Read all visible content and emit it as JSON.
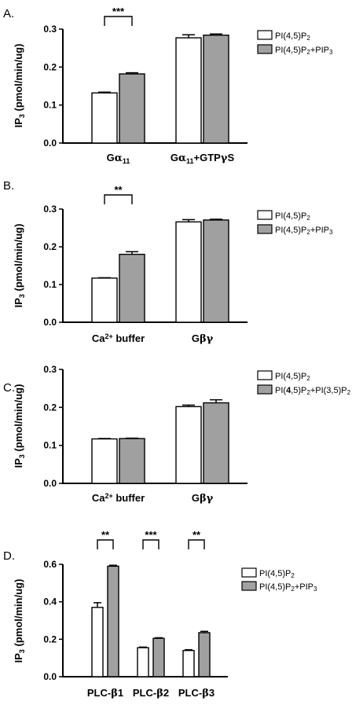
{
  "colors": {
    "series1_fill": "#ffffff",
    "series2_fill": "#a0a0a0",
    "stroke": "#000000"
  },
  "chart_data": [
    {
      "type": "bar",
      "panel": "A.",
      "ylabel": "IP3 (pmol/min/ug)",
      "ylabel_parts": [
        "IP",
        "3",
        " (pmol/min/ug)"
      ],
      "ylim": [
        0,
        0.3
      ],
      "yticks": [
        0.0,
        0.1,
        0.2,
        0.3
      ],
      "ytick_labels": [
        "0.0",
        "0.1",
        "0.2",
        "0.3"
      ],
      "categories": [
        "Gα11",
        "Gα11+GTPγS"
      ],
      "category_parts": [
        [
          {
            "t": "G"
          },
          {
            "t": "α",
            "g": 1
          },
          {
            "t": "11",
            "s": "sub"
          }
        ],
        [
          {
            "t": "G"
          },
          {
            "t": "α",
            "g": 1
          },
          {
            "t": "11",
            "s": "sub"
          },
          {
            "t": "+GTP"
          },
          {
            "t": "γ",
            "g": 1
          },
          {
            "t": "S"
          }
        ]
      ],
      "series": [
        {
          "name": "PI(4,5)P2",
          "name_parts": [
            {
              "t": "PI(4,5)P"
            },
            {
              "t": "2",
              "s": "sub"
            }
          ],
          "values": [
            0.132,
            0.277
          ],
          "errors": [
            0.002,
            0.008
          ]
        },
        {
          "name": "PI(4,5)P2+PIP3",
          "name_parts": [
            {
              "t": "PI(4,5)P"
            },
            {
              "t": "2",
              "s": "sub"
            },
            {
              "t": "+PIP"
            },
            {
              "t": "3",
              "s": "sub"
            }
          ],
          "values": [
            0.182,
            0.284
          ],
          "errors": [
            0.003,
            0.003
          ]
        }
      ],
      "significance": [
        {
          "group": 0,
          "label": "***"
        }
      ]
    },
    {
      "type": "bar",
      "panel": "B.",
      "ylabel": "IP3 (pmol/min/ug)",
      "ylabel_parts": [
        "IP",
        "3",
        " (pmol/min/ug)"
      ],
      "ylim": [
        0,
        0.3
      ],
      "yticks": [
        0.0,
        0.1,
        0.2,
        0.3
      ],
      "ytick_labels": [
        "0.0",
        "0.1",
        "0.2",
        "0.3"
      ],
      "categories": [
        "Ca2+ buffer",
        "Gβγ"
      ],
      "category_parts": [
        [
          {
            "t": "Ca"
          },
          {
            "t": "2+",
            "s": "sup"
          },
          {
            "t": " buffer"
          }
        ],
        [
          {
            "t": "G"
          },
          {
            "t": "βγ",
            "g": 1
          }
        ]
      ],
      "series": [
        {
          "name": "PI(4,5)P2",
          "name_parts": [
            {
              "t": "PI(4,5)P"
            },
            {
              "t": "2",
              "s": "sub"
            }
          ],
          "values": [
            0.117,
            0.266
          ],
          "errors": [
            0.001,
            0.006
          ]
        },
        {
          "name": "PI(4,5)P2+PIP3",
          "name_parts": [
            {
              "t": "PI(4,5)P"
            },
            {
              "t": "2",
              "s": "sub"
            },
            {
              "t": "+PIP"
            },
            {
              "t": "3",
              "s": "sub"
            }
          ],
          "values": [
            0.18,
            0.271
          ],
          "errors": [
            0.007,
            0.002
          ]
        }
      ],
      "significance": [
        {
          "group": 0,
          "label": "**"
        }
      ]
    },
    {
      "type": "bar",
      "panel": "C.",
      "ylabel": "IP3 (pmol/min/ug)",
      "ylabel_parts": [
        "IP",
        "3",
        " (pmol/min/ug)"
      ],
      "ylim": [
        0,
        0.3
      ],
      "yticks": [
        0.0,
        0.1,
        0.2,
        0.3
      ],
      "ytick_labels": [
        "0.0",
        "0.1",
        "0.2",
        "0.3"
      ],
      "categories": [
        "Ca2+ buffer",
        "Gβγ"
      ],
      "category_parts": [
        [
          {
            "t": "Ca"
          },
          {
            "t": "2+",
            "s": "sup"
          },
          {
            "t": " buffer"
          }
        ],
        [
          {
            "t": "G"
          },
          {
            "t": "βγ",
            "g": 1
          }
        ]
      ],
      "series": [
        {
          "name": "PI(4,5)P2",
          "name_parts": [
            {
              "t": "PI(4,5)P"
            },
            {
              "t": "2",
              "s": "sub"
            }
          ],
          "values": [
            0.117,
            0.202
          ],
          "errors": [
            0.001,
            0.004
          ]
        },
        {
          "name": "PI(4,5)P2+PI(3,5)P2",
          "name_parts": [
            {
              "t": "PI("
            },
            {
              "t": "4",
              "b": 1
            },
            {
              "t": ",5)P"
            },
            {
              "t": "2",
              "s": "sub"
            },
            {
              "t": "+PI(3,5)P"
            },
            {
              "t": "2",
              "s": "sub"
            }
          ],
          "values": [
            0.118,
            0.212
          ],
          "errors": [
            0.001,
            0.008
          ]
        }
      ],
      "significance": []
    },
    {
      "type": "bar",
      "panel": "D.",
      "ylabel": "IP3 (pmol/min/ug)",
      "ylabel_parts": [
        "IP",
        "3",
        " (pmol/min/ug)"
      ],
      "ylim": [
        0,
        0.6
      ],
      "yticks": [
        0.0,
        0.2,
        0.4,
        0.6
      ],
      "ytick_labels": [
        "0.0",
        "0.2",
        "0.4",
        "0.6"
      ],
      "categories": [
        "PLC-β1",
        "PLC-β2",
        "PLC-β3"
      ],
      "category_parts": [
        [
          {
            "t": "PLC-"
          },
          {
            "t": "β",
            "g": 1
          },
          {
            "t": "1"
          }
        ],
        [
          {
            "t": "PLC-"
          },
          {
            "t": "β",
            "g": 1
          },
          {
            "t": "2"
          }
        ],
        [
          {
            "t": "PLC-"
          },
          {
            "t": "β",
            "g": 1
          },
          {
            "t": "3"
          }
        ]
      ],
      "series": [
        {
          "name": "PI(4,5)P2",
          "name_parts": [
            {
              "t": "PI(4,5)P"
            },
            {
              "t": "2",
              "s": "sub"
            }
          ],
          "values": [
            0.37,
            0.155,
            0.14
          ],
          "errors": [
            0.025,
            0.003,
            0.004
          ]
        },
        {
          "name": "PI(4,5)P2+PIP3",
          "name_parts": [
            {
              "t": "PI(4,5)P"
            },
            {
              "t": "2",
              "s": "sub"
            },
            {
              "t": "+PIP"
            },
            {
              "t": "3",
              "s": "sub"
            }
          ],
          "values": [
            0.59,
            0.205,
            0.235
          ],
          "errors": [
            0.005,
            0.003,
            0.007
          ]
        }
      ],
      "significance": [
        {
          "group": 0,
          "label": "**"
        },
        {
          "group": 1,
          "label": "***"
        },
        {
          "group": 2,
          "label": "**"
        }
      ]
    }
  ]
}
